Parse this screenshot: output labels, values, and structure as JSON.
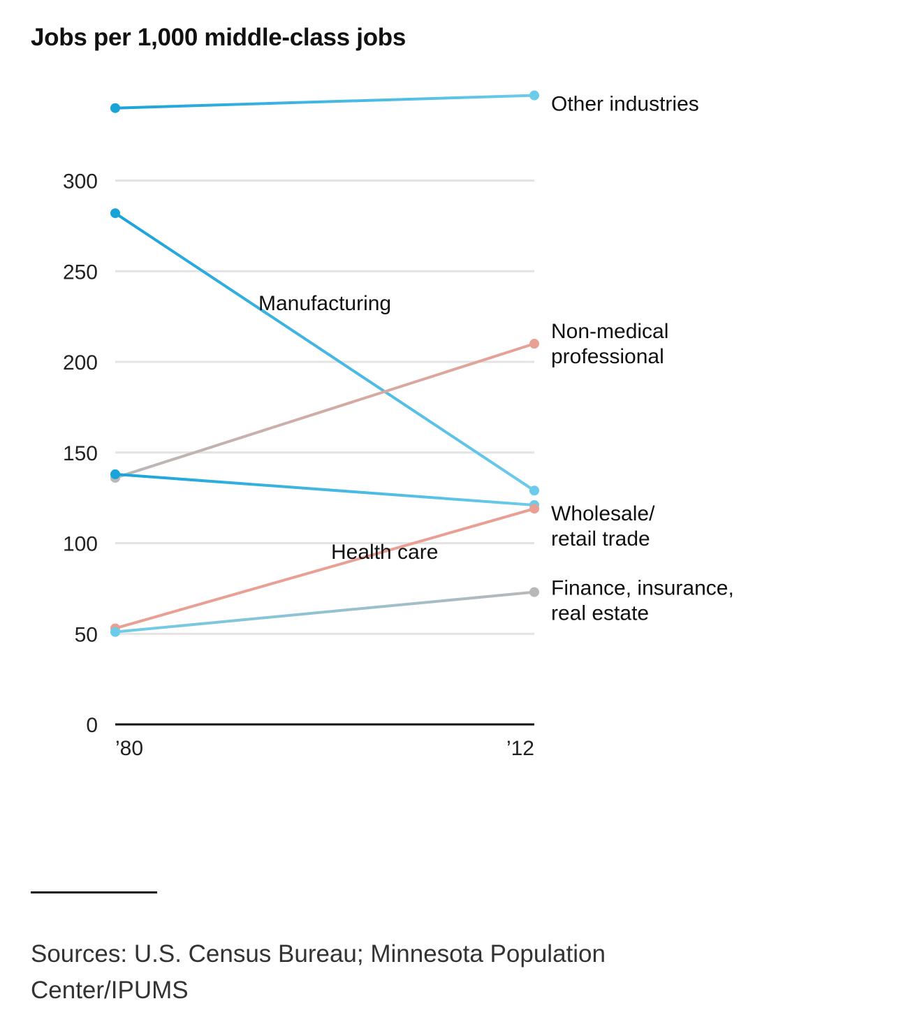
{
  "chart_data": {
    "type": "line",
    "title": "Jobs per 1,000 middle-class jobs",
    "x": [
      "’80",
      "’12"
    ],
    "ylim": [
      0,
      350
    ],
    "yticks": [
      0,
      50,
      100,
      150,
      200,
      250,
      300
    ],
    "grid": true,
    "series": [
      {
        "name": "Other industries",
        "values": [
          340,
          347
        ],
        "colors": [
          "#1aa3d9",
          "#6dcbea"
        ]
      },
      {
        "name": "Manufacturing",
        "values": [
          282,
          129
        ],
        "colors": [
          "#1aa3d9",
          "#6dcbea"
        ]
      },
      {
        "name": "Non-medical professional",
        "values": [
          136,
          210
        ],
        "colors": [
          "#b8b8b8",
          "#e8a095"
        ]
      },
      {
        "name": "Wholesale/ retail trade",
        "values": [
          138,
          121
        ],
        "colors": [
          "#1aa3d9",
          "#6dcbea"
        ]
      },
      {
        "name": "Health care",
        "values": [
          53,
          119
        ],
        "colors": [
          "#e8a095",
          "#e8a095"
        ]
      },
      {
        "name": "Finance, insurance, real estate",
        "values": [
          51,
          73
        ],
        "colors": [
          "#6dcbea",
          "#b8b8b8"
        ]
      }
    ],
    "annotations": [
      {
        "series": "Other industries",
        "lines": [
          "Other industries"
        ],
        "placement": "right"
      },
      {
        "series": "Non-medical professional",
        "lines": [
          "Non-medical",
          "professional"
        ],
        "placement": "right"
      },
      {
        "series": "Wholesale/ retail trade",
        "lines": [
          "Wholesale/",
          "retail trade"
        ],
        "placement": "right"
      },
      {
        "series": "Finance, insurance, real estate",
        "lines": [
          "Finance, insurance,",
          "real estate"
        ],
        "placement": "right"
      },
      {
        "series": "Manufacturing",
        "lines": [
          "Manufacturing"
        ],
        "placement": "inline"
      },
      {
        "series": "Health care",
        "lines": [
          "Health care"
        ],
        "placement": "inline"
      }
    ]
  },
  "source_note": "Sources: U.S. Census Bureau; Minnesota Population Center/IPUMS"
}
